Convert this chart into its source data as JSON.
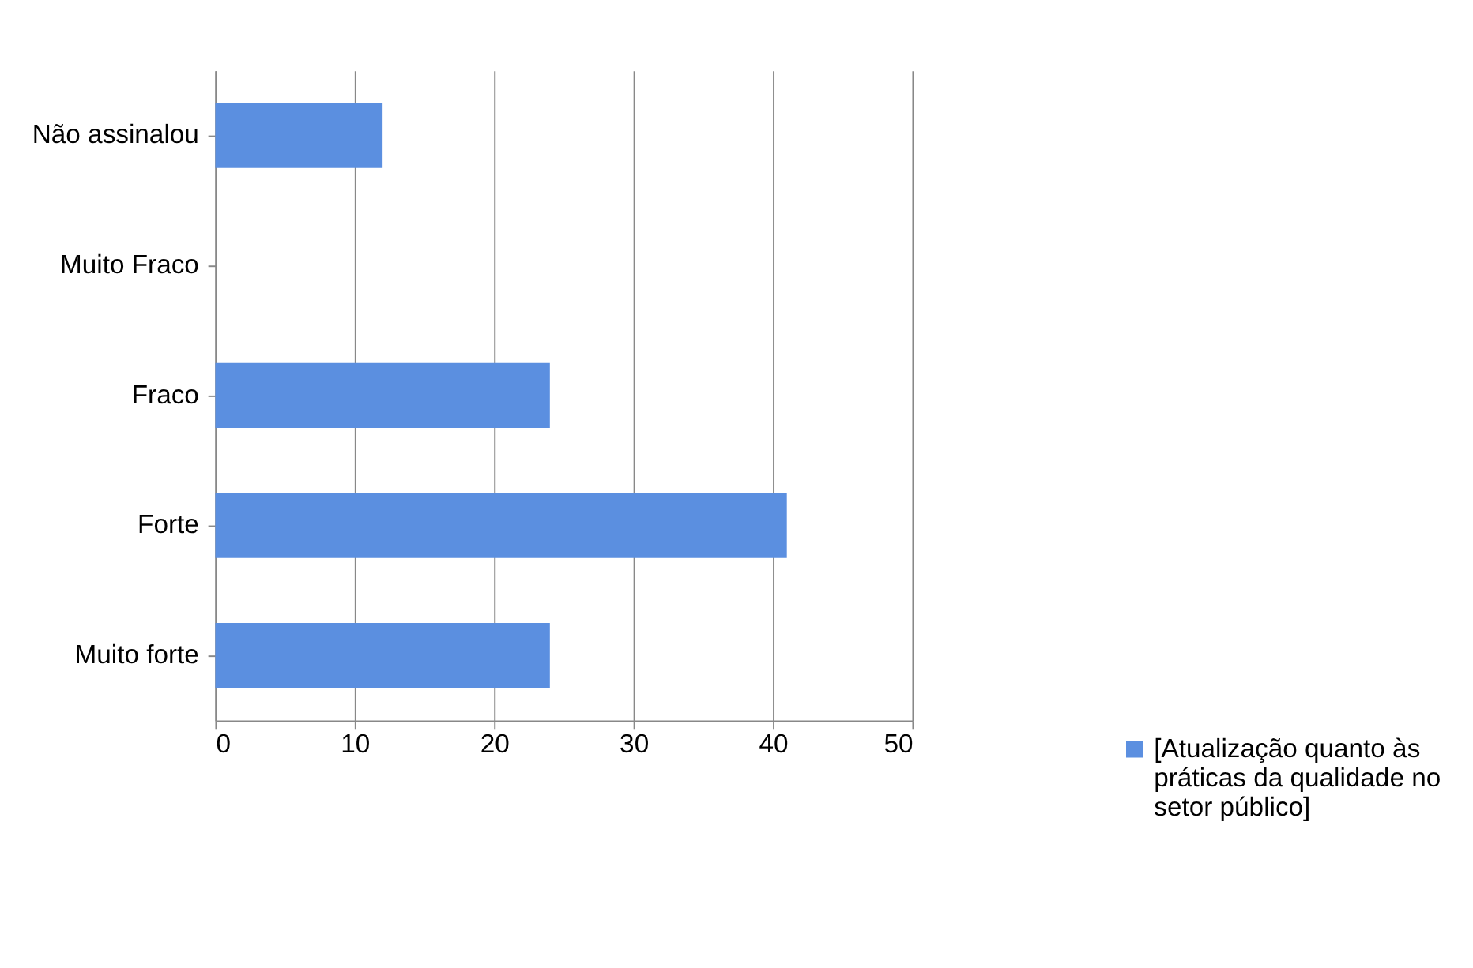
{
  "chart_data": {
    "type": "bar",
    "orientation": "horizontal",
    "categories": [
      "Não assinalou",
      "Muito Fraco",
      "Fraco",
      "Forte",
      "Muito forte"
    ],
    "series": [
      {
        "name": "[Atualização quanto às práticas da qualidade no setor público]",
        "color": "#5b8fe0",
        "values": [
          12,
          0,
          24,
          41,
          24
        ]
      }
    ],
    "xlim": [
      0,
      50
    ],
    "xticks": [
      0,
      10,
      20,
      30,
      40,
      50
    ],
    "grid": "x",
    "legend": "right"
  }
}
